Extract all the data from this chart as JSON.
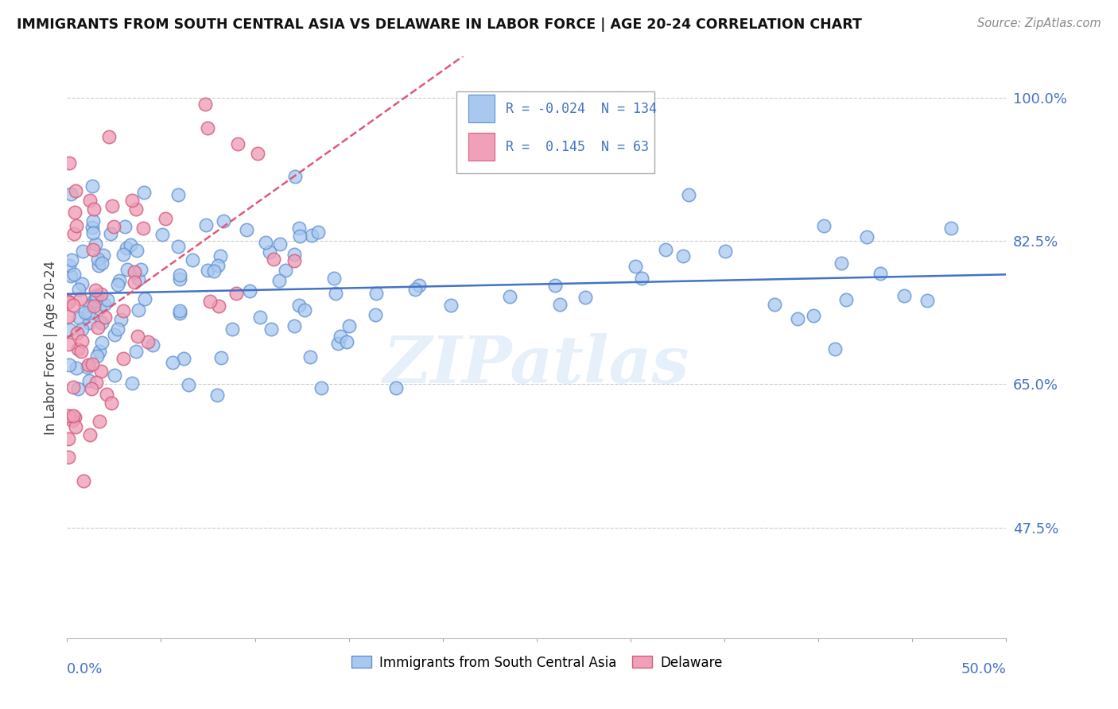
{
  "title": "IMMIGRANTS FROM SOUTH CENTRAL ASIA VS DELAWARE IN LABOR FORCE | AGE 20-24 CORRELATION CHART",
  "source": "Source: ZipAtlas.com",
  "ylabel_label": "In Labor Force | Age 20-24",
  "ylabel_ticks": [
    47.5,
    65.0,
    82.5,
    100.0
  ],
  "xmin": 0.0,
  "xmax": 0.5,
  "ymin": 0.34,
  "ymax": 1.05,
  "blue_R": -0.024,
  "blue_N": 134,
  "pink_R": 0.145,
  "pink_N": 63,
  "blue_color": "#a8c8f0",
  "pink_color": "#f0a0b8",
  "blue_edge_color": "#6090d0",
  "pink_edge_color": "#d06080",
  "blue_line_color": "#4472c4",
  "pink_line_color": "#e05878",
  "legend_label_blue": "Immigrants from South Central Asia",
  "legend_label_pink": "Delaware",
  "watermark": "ZIPatlas",
  "title_color": "#111111",
  "source_color": "#888888",
  "ytick_color": "#4472c4",
  "grid_color": "#cccccc",
  "xlabel_color": "#4472c4"
}
